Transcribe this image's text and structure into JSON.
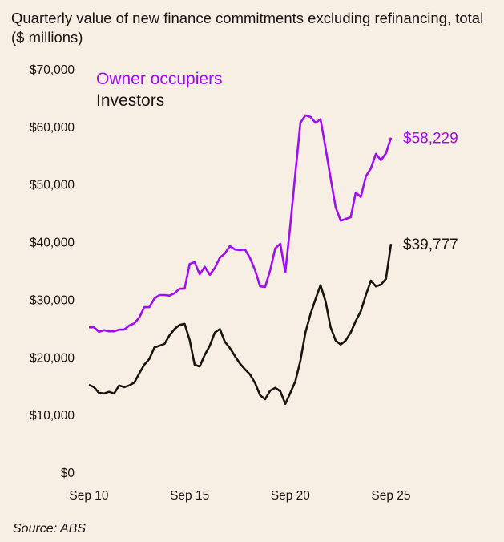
{
  "chart_data": {
    "type": "line",
    "title": "Quarterly value of new finance commitments excluding refinancing, total ($ millions)",
    "source": "Source: ABS",
    "xlabel": "",
    "ylabel": "",
    "x_start": "Sep 10",
    "x_end": "Sep 25",
    "frequency": "quarterly",
    "x_ticks": [
      "Sep 10",
      "Sep 15",
      "Sep 20",
      "Sep 25"
    ],
    "y_ticks": [
      "$0",
      "$10,000",
      "$20,000",
      "$30,000",
      "$40,000",
      "$50,000",
      "$60,000",
      "$70,000"
    ],
    "ylim": [
      0,
      70000
    ],
    "grid": false,
    "legend_position": "top-left",
    "series": [
      {
        "name": "Owner occupiers",
        "color": "#a20cf2",
        "end_label": "$58,229",
        "values": [
          25300,
          25300,
          24500,
          24800,
          24600,
          24600,
          24900,
          24900,
          25600,
          26000,
          27000,
          28800,
          28800,
          30300,
          30900,
          30900,
          30800,
          31200,
          32000,
          32000,
          36300,
          36600,
          34500,
          35800,
          34400,
          35600,
          37400,
          38100,
          39400,
          38800,
          38700,
          38800,
          37300,
          35200,
          32400,
          32300,
          35200,
          39000,
          39800,
          34800,
          43000,
          52000,
          60800,
          62100,
          61800,
          60800,
          61400,
          56400,
          51200,
          46100,
          43800,
          44100,
          44400,
          48700,
          47900,
          51500,
          52900,
          55400,
          54300,
          55500,
          58229
        ]
      },
      {
        "name": "Investors",
        "color": "#1a1410",
        "end_label": "$39,777",
        "values": [
          15300,
          14900,
          13900,
          13800,
          14100,
          13800,
          15200,
          14900,
          15200,
          15700,
          17300,
          18800,
          19800,
          21800,
          22100,
          22400,
          23900,
          25000,
          25700,
          25900,
          23100,
          18800,
          18500,
          20500,
          22100,
          24400,
          25000,
          22800,
          21700,
          20300,
          19000,
          18000,
          17100,
          15600,
          13500,
          12800,
          14300,
          14800,
          14200,
          12000,
          13900,
          15900,
          19500,
          24400,
          27600,
          30200,
          32600,
          29800,
          25300,
          23000,
          22300,
          23000,
          24400,
          26400,
          28100,
          30900,
          33400,
          32400,
          32700,
          33700,
          39777
        ]
      }
    ]
  }
}
